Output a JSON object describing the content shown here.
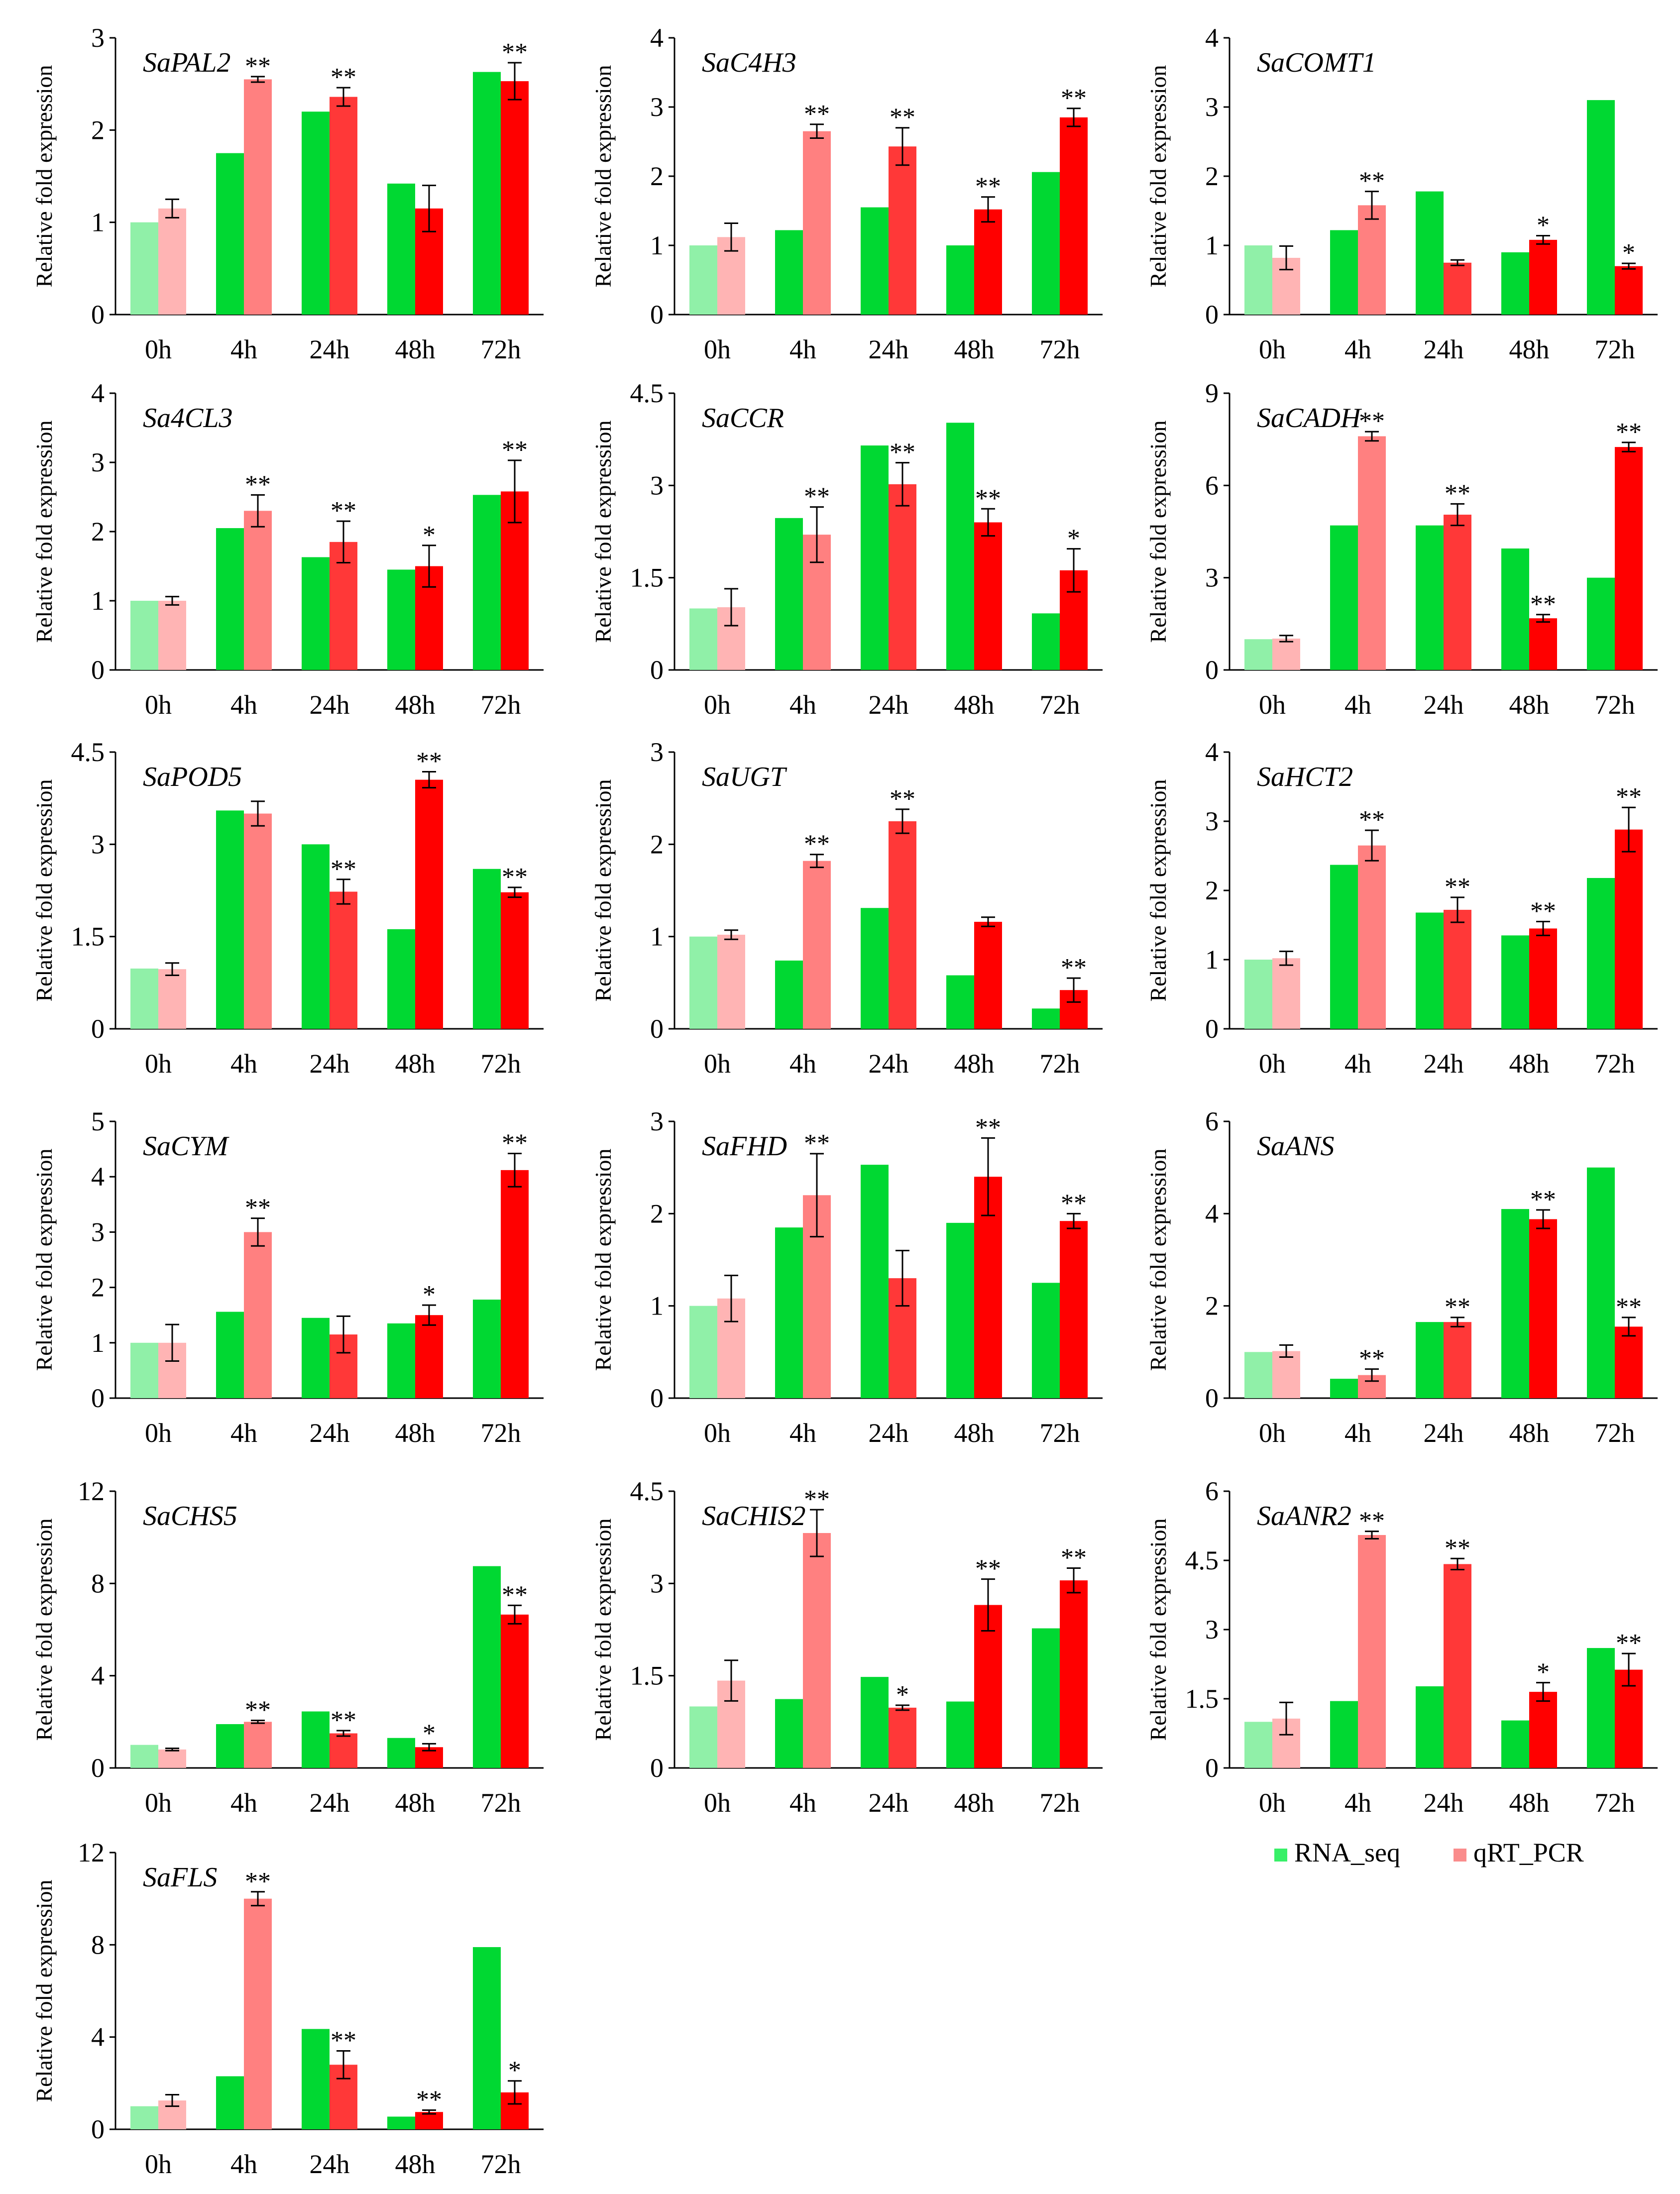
{
  "legend": {
    "items": [
      {
        "label": "RNA_seq",
        "color": "#38f068"
      },
      {
        "label": "qRT_PCR",
        "color": "#fa8c8c"
      }
    ]
  },
  "ylabel": "Relative fold expression",
  "categories": [
    "0h",
    "4h",
    "24h",
    "48h",
    "72h"
  ],
  "colors": {
    "rna": [
      "#90f0a8",
      "#00d832",
      "#00d832",
      "#00d832",
      "#00d832"
    ],
    "qpcr": [
      "#ffb4b4",
      "#ff8080",
      "#ff3838",
      "#ff0000",
      "#ff0000"
    ],
    "error": "#000000"
  },
  "chart_data": [
    {
      "type": "bar",
      "title": "SaPAL2",
      "categories": [
        "0h",
        "4h",
        "24h",
        "48h",
        "72h"
      ],
      "ylim": [
        0,
        3
      ],
      "yticks": [
        "0",
        "1",
        "2",
        "3"
      ],
      "series": [
        {
          "name": "RNA_seq",
          "values": [
            1.0,
            1.75,
            2.2,
            1.42,
            2.63
          ]
        },
        {
          "name": "qRT_PCR",
          "values": [
            1.15,
            2.55,
            2.36,
            1.15,
            2.53
          ],
          "errors": [
            0.1,
            0.03,
            0.1,
            0.25,
            0.2
          ],
          "sig": [
            "",
            "**",
            "**",
            "",
            "**"
          ]
        }
      ]
    },
    {
      "type": "bar",
      "title": "SaC4H3",
      "categories": [
        "0h",
        "4h",
        "24h",
        "48h",
        "72h"
      ],
      "ylim": [
        0,
        4
      ],
      "yticks": [
        "0",
        "1",
        "2",
        "3",
        "4"
      ],
      "series": [
        {
          "name": "RNA_seq",
          "values": [
            1.0,
            1.22,
            1.55,
            1.0,
            2.06
          ]
        },
        {
          "name": "qRT_PCR",
          "values": [
            1.12,
            2.65,
            2.43,
            1.52,
            2.85
          ],
          "errors": [
            0.2,
            0.1,
            0.27,
            0.18,
            0.13
          ],
          "sig": [
            "",
            "**",
            "**",
            "**",
            "**"
          ]
        }
      ]
    },
    {
      "type": "bar",
      "title": "SaCOMT1",
      "categories": [
        "0h",
        "4h",
        "24h",
        "48h",
        "72h"
      ],
      "ylim": [
        0,
        4
      ],
      "yticks": [
        "0",
        "1",
        "2",
        "3",
        "4"
      ],
      "series": [
        {
          "name": "RNA_seq",
          "values": [
            1.0,
            1.22,
            1.78,
            0.9,
            3.1
          ]
        },
        {
          "name": "qRT_PCR",
          "values": [
            0.82,
            1.58,
            0.75,
            1.08,
            0.7
          ],
          "errors": [
            0.17,
            0.2,
            0.04,
            0.06,
            0.04
          ],
          "sig": [
            "",
            "**",
            "",
            "*",
            "*"
          ]
        }
      ]
    },
    {
      "type": "bar",
      "title": "Sa4CL3",
      "categories": [
        "0h",
        "4h",
        "24h",
        "48h",
        "72h"
      ],
      "ylim": [
        0,
        4
      ],
      "yticks": [
        "0",
        "1",
        "2",
        "3",
        "4"
      ],
      "series": [
        {
          "name": "RNA_seq",
          "values": [
            1.0,
            2.05,
            1.63,
            1.45,
            2.53
          ]
        },
        {
          "name": "qRT_PCR",
          "values": [
            1.0,
            2.3,
            1.85,
            1.5,
            2.58
          ],
          "errors": [
            0.06,
            0.23,
            0.3,
            0.3,
            0.45
          ],
          "sig": [
            "",
            "**",
            "**",
            "*",
            "**"
          ]
        }
      ]
    },
    {
      "type": "bar",
      "title": "SaCCR",
      "categories": [
        "0h",
        "4h",
        "24h",
        "48h",
        "72h"
      ],
      "ylim": [
        0,
        4.5
      ],
      "yticks": [
        "0",
        "1.5",
        "3",
        "4.5"
      ],
      "series": [
        {
          "name": "RNA_seq",
          "values": [
            1.0,
            2.47,
            3.65,
            4.02,
            0.92
          ]
        },
        {
          "name": "qRT_PCR",
          "values": [
            1.02,
            2.2,
            3.02,
            2.4,
            1.62
          ],
          "errors": [
            0.3,
            0.45,
            0.35,
            0.22,
            0.35
          ],
          "sig": [
            "",
            "**",
            "**",
            "**",
            "*"
          ]
        }
      ]
    },
    {
      "type": "bar",
      "title": "SaCADH",
      "categories": [
        "0h",
        "4h",
        "24h",
        "48h",
        "72h"
      ],
      "ylim": [
        0,
        9
      ],
      "yticks": [
        "0",
        "3",
        "6",
        "9"
      ],
      "series": [
        {
          "name": "RNA_seq",
          "values": [
            1.0,
            4.7,
            4.7,
            3.95,
            3.0
          ]
        },
        {
          "name": "qRT_PCR",
          "values": [
            1.02,
            7.6,
            5.05,
            1.68,
            7.25
          ],
          "errors": [
            0.1,
            0.15,
            0.35,
            0.12,
            0.15
          ],
          "sig": [
            "",
            "**",
            "**",
            "**",
            "**"
          ]
        }
      ]
    },
    {
      "type": "bar",
      "title": "SaPOD5",
      "categories": [
        "0h",
        "4h",
        "24h",
        "48h",
        "72h"
      ],
      "ylim": [
        0,
        4.5
      ],
      "yticks": [
        "0",
        "1.5",
        "3",
        "4.5"
      ],
      "series": [
        {
          "name": "RNA_seq",
          "values": [
            0.98,
            3.55,
            3.0,
            1.62,
            2.6
          ]
        },
        {
          "name": "qRT_PCR",
          "values": [
            0.97,
            3.5,
            2.23,
            4.05,
            2.22
          ],
          "errors": [
            0.1,
            0.2,
            0.2,
            0.13,
            0.08
          ],
          "sig": [
            "",
            "",
            "**",
            "**",
            "**"
          ]
        }
      ]
    },
    {
      "type": "bar",
      "title": "SaUGT",
      "categories": [
        "0h",
        "4h",
        "24h",
        "48h",
        "72h"
      ],
      "ylim": [
        0,
        3
      ],
      "yticks": [
        "0",
        "1",
        "2",
        "3"
      ],
      "series": [
        {
          "name": "RNA_seq",
          "values": [
            1.0,
            0.74,
            1.31,
            0.58,
            0.22
          ]
        },
        {
          "name": "qRT_PCR",
          "values": [
            1.02,
            1.82,
            2.25,
            1.16,
            0.42
          ],
          "errors": [
            0.05,
            0.07,
            0.13,
            0.05,
            0.13
          ],
          "sig": [
            "",
            "**",
            "**",
            "",
            "**"
          ]
        }
      ]
    },
    {
      "type": "bar",
      "title": "SaHCT2",
      "categories": [
        "0h",
        "4h",
        "24h",
        "48h",
        "72h"
      ],
      "ylim": [
        0,
        4
      ],
      "yticks": [
        "0",
        "1",
        "2",
        "3",
        "4"
      ],
      "series": [
        {
          "name": "RNA_seq",
          "values": [
            1.0,
            2.37,
            1.68,
            1.35,
            2.18
          ]
        },
        {
          "name": "qRT_PCR",
          "values": [
            1.02,
            2.65,
            1.72,
            1.45,
            2.88
          ],
          "errors": [
            0.1,
            0.22,
            0.18,
            0.1,
            0.32
          ],
          "sig": [
            "",
            "**",
            "**",
            "**",
            "**"
          ]
        }
      ]
    },
    {
      "type": "bar",
      "title": "SaCYM",
      "categories": [
        "0h",
        "4h",
        "24h",
        "48h",
        "72h"
      ],
      "ylim": [
        0,
        5
      ],
      "yticks": [
        "0",
        "1",
        "2",
        "3",
        "4",
        "5"
      ],
      "series": [
        {
          "name": "RNA_seq",
          "values": [
            1.0,
            1.56,
            1.45,
            1.35,
            1.78
          ]
        },
        {
          "name": "qRT_PCR",
          "values": [
            1.0,
            3.0,
            1.15,
            1.5,
            4.12
          ],
          "errors": [
            0.33,
            0.25,
            0.33,
            0.18,
            0.3
          ],
          "sig": [
            "",
            "**",
            "",
            "*",
            "**"
          ]
        }
      ]
    },
    {
      "type": "bar",
      "title": "SaFHD",
      "categories": [
        "0h",
        "4h",
        "24h",
        "48h",
        "72h"
      ],
      "ylim": [
        0,
        3
      ],
      "yticks": [
        "0",
        "1",
        "2",
        "3"
      ],
      "series": [
        {
          "name": "RNA_seq",
          "values": [
            1.0,
            1.85,
            2.53,
            1.9,
            1.25
          ]
        },
        {
          "name": "qRT_PCR",
          "values": [
            1.08,
            2.2,
            1.3,
            2.4,
            1.92
          ],
          "errors": [
            0.25,
            0.45,
            0.3,
            0.42,
            0.08
          ],
          "sig": [
            "",
            "**",
            "",
            "**",
            "**"
          ]
        }
      ]
    },
    {
      "type": "bar",
      "title": "SaANS",
      "categories": [
        "0h",
        "4h",
        "24h",
        "48h",
        "72h"
      ],
      "ylim": [
        0,
        6
      ],
      "yticks": [
        "0",
        "2",
        "4",
        "6"
      ],
      "series": [
        {
          "name": "RNA_seq",
          "values": [
            1.0,
            0.42,
            1.65,
            4.1,
            5.0
          ]
        },
        {
          "name": "qRT_PCR",
          "values": [
            1.02,
            0.5,
            1.65,
            3.88,
            1.55
          ],
          "errors": [
            0.13,
            0.13,
            0.1,
            0.2,
            0.2
          ],
          "sig": [
            "",
            "**",
            "**",
            "**",
            "**"
          ]
        }
      ]
    },
    {
      "type": "bar",
      "title": "SaCHS5",
      "categories": [
        "0h",
        "4h",
        "24h",
        "48h",
        "72h"
      ],
      "ylim": [
        0,
        12
      ],
      "yticks": [
        "0",
        "4",
        "8",
        "12"
      ],
      "series": [
        {
          "name": "RNA_seq",
          "values": [
            1.0,
            1.9,
            2.45,
            1.3,
            8.75
          ]
        },
        {
          "name": "qRT_PCR",
          "values": [
            0.8,
            2.0,
            1.5,
            0.9,
            6.65
          ],
          "errors": [
            0.05,
            0.06,
            0.12,
            0.15,
            0.4
          ],
          "sig": [
            "",
            "**",
            "**",
            "*",
            "**"
          ]
        }
      ]
    },
    {
      "type": "bar",
      "title": "SaCHIS2",
      "categories": [
        "0h",
        "4h",
        "24h",
        "48h",
        "72h"
      ],
      "ylim": [
        0,
        4.5
      ],
      "yticks": [
        "0",
        "1.5",
        "3",
        "4.5"
      ],
      "series": [
        {
          "name": "RNA_seq",
          "values": [
            1.0,
            1.12,
            1.48,
            1.08,
            2.27
          ]
        },
        {
          "name": "qRT_PCR",
          "values": [
            1.42,
            3.82,
            0.98,
            2.65,
            3.05
          ],
          "errors": [
            0.33,
            0.38,
            0.04,
            0.42,
            0.2
          ],
          "sig": [
            "",
            "**",
            "*",
            "**",
            "**"
          ]
        }
      ]
    },
    {
      "type": "bar",
      "title": "SaANR2",
      "categories": [
        "0h",
        "4h",
        "24h",
        "48h",
        "72h"
      ],
      "ylim": [
        0,
        6
      ],
      "yticks": [
        "0",
        "1.5",
        "3",
        "4.5",
        "6"
      ],
      "series": [
        {
          "name": "RNA_seq",
          "values": [
            1.0,
            1.45,
            1.77,
            1.03,
            2.6
          ]
        },
        {
          "name": "qRT_PCR",
          "values": [
            1.07,
            5.05,
            4.42,
            1.65,
            2.13
          ],
          "errors": [
            0.35,
            0.08,
            0.12,
            0.2,
            0.35
          ],
          "sig": [
            "",
            "**",
            "**",
            "*",
            "**"
          ]
        }
      ]
    },
    {
      "type": "bar",
      "title": "SaFLS",
      "categories": [
        "0h",
        "4h",
        "24h",
        "48h",
        "72h"
      ],
      "ylim": [
        0,
        12
      ],
      "yticks": [
        "0",
        "4",
        "8",
        "12"
      ],
      "series": [
        {
          "name": "RNA_seq",
          "values": [
            1.0,
            2.3,
            4.35,
            0.55,
            7.9
          ]
        },
        {
          "name": "qRT_PCR",
          "values": [
            1.25,
            10.0,
            2.8,
            0.75,
            1.6
          ],
          "errors": [
            0.25,
            0.3,
            0.6,
            0.08,
            0.5
          ],
          "sig": [
            "",
            "**",
            "**",
            "**",
            "*"
          ]
        }
      ]
    }
  ]
}
